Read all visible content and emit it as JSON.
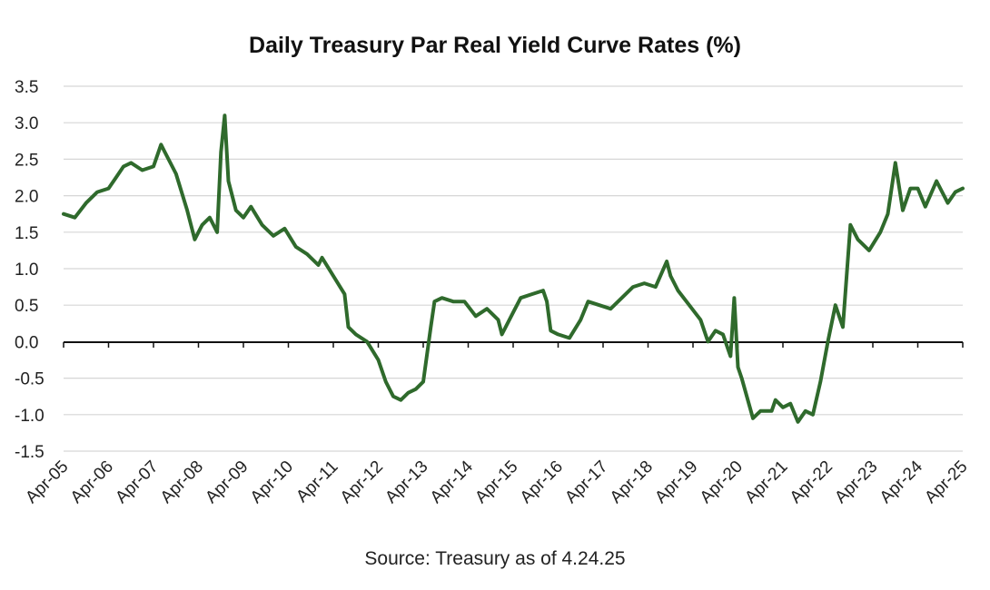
{
  "chart_data": {
    "type": "line",
    "title": "Daily Treasury Par Real Yield Curve Rates (%)",
    "note": "Source: Treasury as of 4.24.25",
    "xlabel": "",
    "ylabel": "",
    "ylim": [
      -1.5,
      3.5
    ],
    "y_ticks": [
      "3.5",
      "3.0",
      "2.5",
      "2.0",
      "1.5",
      "1.0",
      "0.5",
      "0.0",
      "-0.5",
      "-1.0",
      "-1.5"
    ],
    "x_range": [
      "2005-04",
      "2025-04"
    ],
    "x_ticks": [
      "Apr-05",
      "Apr-06",
      "Apr-07",
      "Apr-08",
      "Apr-09",
      "Apr-10",
      "Apr-11",
      "Apr-12",
      "Apr-13",
      "Apr-14",
      "Apr-15",
      "Apr-16",
      "Apr-17",
      "Apr-18",
      "Apr-19",
      "Apr-20",
      "Apr-21",
      "Apr-22",
      "Apr-23",
      "Apr-24",
      "Apr-25"
    ],
    "grid": "horizontal",
    "legend": "none",
    "line_color": "#2f6a2c",
    "series": [
      {
        "x": [
          "2005-04",
          "2005-07",
          "2005-10",
          "2006-01",
          "2006-04",
          "2006-06",
          "2006-08",
          "2006-10",
          "2007-01",
          "2007-04",
          "2007-06",
          "2007-07",
          "2007-10",
          "2008-01",
          "2008-03",
          "2008-05",
          "2008-07",
          "2008-09",
          "2008-10",
          "2008-11",
          "2008-12",
          "2009-02",
          "2009-04",
          "2009-06",
          "2009-09",
          "2009-12",
          "2010-03",
          "2010-06",
          "2010-09",
          "2010-12",
          "2011-01",
          "2011-04",
          "2011-07",
          "2011-08",
          "2011-10",
          "2012-01",
          "2012-04",
          "2012-06",
          "2012-08",
          "2012-10",
          "2012-12",
          "2013-02",
          "2013-04",
          "2013-06",
          "2013-07",
          "2013-09",
          "2013-12",
          "2014-03",
          "2014-06",
          "2014-09",
          "2014-12",
          "2015-01",
          "2015-04",
          "2015-06",
          "2015-09",
          "2015-12",
          "2016-01",
          "2016-02",
          "2016-04",
          "2016-07",
          "2016-10",
          "2016-12",
          "2017-03",
          "2017-06",
          "2017-09",
          "2017-12",
          "2018-03",
          "2018-06",
          "2018-09",
          "2018-10",
          "2018-12",
          "2019-03",
          "2019-06",
          "2019-08",
          "2019-10",
          "2019-12",
          "2020-02",
          "2020-03",
          "2020-04",
          "2020-05",
          "2020-08",
          "2020-10",
          "2021-01",
          "2021-02",
          "2021-04",
          "2021-06",
          "2021-08",
          "2021-10",
          "2021-12",
          "2022-02",
          "2022-04",
          "2022-06",
          "2022-08",
          "2022-10",
          "2022-12",
          "2023-03",
          "2023-06",
          "2023-08",
          "2023-10",
          "2023-12",
          "2024-02",
          "2024-04",
          "2024-06",
          "2024-09",
          "2024-12",
          "2025-02",
          "2025-04"
        ],
        "values": [
          1.75,
          1.7,
          1.9,
          2.05,
          2.1,
          2.25,
          2.4,
          2.45,
          2.35,
          2.4,
          2.7,
          2.6,
          2.3,
          1.8,
          1.4,
          1.6,
          1.7,
          1.5,
          2.6,
          3.1,
          2.2,
          1.8,
          1.7,
          1.85,
          1.6,
          1.45,
          1.55,
          1.3,
          1.2,
          1.05,
          1.15,
          0.9,
          0.65,
          0.2,
          0.1,
          0.0,
          -0.25,
          -0.55,
          -0.75,
          -0.8,
          -0.7,
          -0.65,
          -0.55,
          0.2,
          0.55,
          0.6,
          0.55,
          0.55,
          0.35,
          0.45,
          0.3,
          0.1,
          0.4,
          0.6,
          0.65,
          0.7,
          0.55,
          0.15,
          0.1,
          0.05,
          0.3,
          0.55,
          0.5,
          0.45,
          0.6,
          0.75,
          0.8,
          0.75,
          1.1,
          0.9,
          0.7,
          0.5,
          0.3,
          0.0,
          0.15,
          0.1,
          -0.2,
          0.6,
          -0.35,
          -0.5,
          -1.05,
          -0.95,
          -0.95,
          -0.8,
          -0.9,
          -0.85,
          -1.1,
          -0.95,
          -1.0,
          -0.55,
          0.0,
          0.5,
          0.2,
          1.6,
          1.4,
          1.25,
          1.5,
          1.75,
          2.45,
          1.8,
          2.1,
          2.1,
          1.85,
          2.2,
          1.9,
          2.05,
          2.1
        ]
      }
    ]
  }
}
